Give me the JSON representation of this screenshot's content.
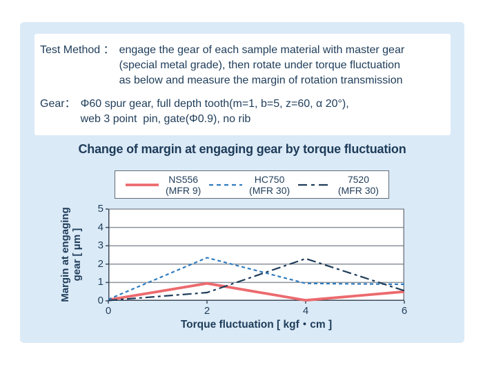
{
  "info": {
    "test_method_label": "Test Method ：",
    "test_method_text": "engage the gear of each sample material with master gear\n(special metal grade), then rotate under torque fluctuation\nas below and measure the margin of rotation transmission",
    "gear_label": "Gear：",
    "gear_text": "Φ60 spur gear, full depth tooth(m=1, b=5, z=60, α 20°),\nweb 3 point  pin, gate(Φ0.9), no rib"
  },
  "chart_data": {
    "type": "line",
    "title": "Change of margin at engaging gear by torque fluctuation",
    "xlabel": "Torque fluctuation [ kgf・cm ]",
    "ylabel": "Margin at engaging gear [ μm ]",
    "ylabel_line1": "Margin at engaging",
    "ylabel_line2": "gear [ μm ]",
    "xlim": [
      0,
      6
    ],
    "ylim": [
      0,
      5
    ],
    "xticks": [
      0,
      2,
      4,
      6
    ],
    "yticks": [
      0,
      1,
      2,
      3,
      4,
      5
    ],
    "grid": "horizontal-gridlines",
    "legend_position": "top-center",
    "series": [
      {
        "name": "NS556",
        "mfr": "(MFR 9)",
        "color": "#ec6a6e",
        "style": "solid",
        "width": 3.8,
        "points": [
          [
            0,
            0.05
          ],
          [
            2,
            0.95
          ],
          [
            4,
            0.03
          ],
          [
            6,
            0.5
          ]
        ]
      },
      {
        "name": "HC750",
        "mfr": "(MFR 30)",
        "color": "#2e7bc0",
        "style": "dashed",
        "width": 2.2,
        "points": [
          [
            0,
            0.08
          ],
          [
            2,
            2.35
          ],
          [
            4,
            0.95
          ],
          [
            6,
            0.9
          ]
        ]
      },
      {
        "name": "7520",
        "mfr": "(MFR 30)",
        "color": "#1e3c59",
        "style": "dashdot",
        "width": 2.2,
        "points": [
          [
            0,
            0.02
          ],
          [
            2,
            0.45
          ],
          [
            4,
            2.3
          ],
          [
            6,
            0.55
          ]
        ]
      }
    ]
  },
  "colors": {
    "page_bg": "#ffffff",
    "panel_bg": "#dbeaf7",
    "card_bg": "#ffffff",
    "text": "#1e3c59",
    "grid": "#8a929b",
    "axis": "#3c4a59",
    "plot_border": "#79828c",
    "legend_border": "#5f6b77"
  }
}
